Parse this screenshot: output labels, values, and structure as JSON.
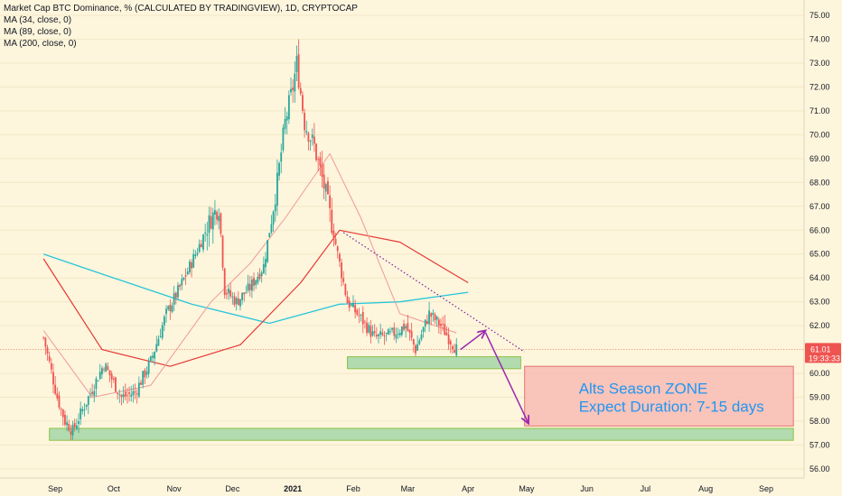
{
  "legend": {
    "title": "Market Cap BTC Dominance, % (CALCULATED BY TRADINGVIEW), 1D, CRYPTOCAP",
    "ma1": "MA (34, close, 0)",
    "ma2": "MA (89, close, 0)",
    "ma3": "MA (200, close, 0)"
  },
  "price_axis": {
    "labels": [
      "75.00",
      "74.00",
      "73.00",
      "72.00",
      "71.00",
      "70.00",
      "69.00",
      "68.00",
      "67.00",
      "66.00",
      "65.00",
      "64.00",
      "63.00",
      "62.00",
      "61.00",
      "60.00",
      "59.00",
      "58.00",
      "57.00",
      "56.00"
    ],
    "current_price": "61.01",
    "countdown": "19:33:33"
  },
  "time_axis": {
    "labels": [
      "Sep",
      "Oct",
      "Nov",
      "Dec",
      "2021",
      "Feb",
      "Mar",
      "Apr",
      "May",
      "Jun",
      "Jul",
      "Aug",
      "Sep"
    ]
  },
  "annotation": {
    "zone_title": "Alts Season ZONE",
    "zone_subtitle": "Expect Duration: 7-15 days"
  },
  "colors": {
    "background": "#fdf5dc",
    "up_candle": "#26a69a",
    "down_candle": "#ef5350",
    "ma34": "#ef9a9a",
    "ma89": "#e53935",
    "ma200": "#26c6da",
    "support_zone": "#a5d6a7",
    "alt_zone": "#f8bbb4",
    "arrow": "#9c27b0",
    "trendline": "#7b1fa2",
    "price_label_bg": "#ef5350"
  },
  "chart_data": {
    "type": "candlestick",
    "symbol": "BTC Dominance %",
    "ylim": [
      55.5,
      75.5
    ],
    "x_months": [
      "Sep",
      "Oct",
      "Nov",
      "Dec",
      "2021",
      "Feb",
      "Mar",
      "Apr",
      "May",
      "Jun",
      "Jul",
      "Aug",
      "Sep"
    ],
    "close_path": [
      [
        "2020-08-26",
        61.5
      ],
      [
        "2020-09-02",
        59.0
      ],
      [
        "2020-09-06",
        58.0
      ],
      [
        "2020-09-10",
        57.6
      ],
      [
        "2020-09-18",
        59.0
      ],
      [
        "2020-09-26",
        60.4
      ],
      [
        "2020-10-05",
        59.0
      ],
      [
        "2020-10-12",
        59.2
      ],
      [
        "2020-10-20",
        60.5
      ],
      [
        "2020-10-28",
        62.5
      ],
      [
        "2020-11-04",
        63.6
      ],
      [
        "2020-11-12",
        65.0
      ],
      [
        "2020-11-20",
        66.5
      ],
      [
        "2020-11-24",
        67.0
      ],
      [
        "2020-11-27",
        63.5
      ],
      [
        "2020-12-03",
        63.0
      ],
      [
        "2020-12-10",
        63.6
      ],
      [
        "2020-12-17",
        64.5
      ],
      [
        "2020-12-24",
        68.0
      ],
      [
        "2020-12-28",
        70.5
      ],
      [
        "2021-01-01",
        72.0
      ],
      [
        "2021-01-03",
        73.0
      ],
      [
        "2021-01-07",
        70.5
      ],
      [
        "2021-01-12",
        69.5
      ],
      [
        "2021-01-18",
        67.5
      ],
      [
        "2021-01-24",
        65.0
      ],
      [
        "2021-01-29",
        63.0
      ],
      [
        "2021-02-05",
        62.3
      ],
      [
        "2021-02-12",
        61.5
      ],
      [
        "2021-02-20",
        61.6
      ],
      [
        "2021-02-28",
        62.0
      ],
      [
        "2021-03-05",
        61.0
      ],
      [
        "2021-03-12",
        62.5
      ],
      [
        "2021-03-18",
        62.0
      ],
      [
        "2021-03-26",
        61.01
      ]
    ],
    "ma34": [
      [
        "2020-08-26",
        61.8
      ],
      [
        "2020-09-20",
        59.0
      ],
      [
        "2020-10-20",
        59.5
      ],
      [
        "2020-11-20",
        63.0
      ],
      [
        "2020-12-10",
        64.6
      ],
      [
        "2020-12-28",
        66.5
      ],
      [
        "2021-01-20",
        69.2
      ],
      [
        "2021-02-05",
        66.5
      ],
      [
        "2021-02-25",
        62.5
      ],
      [
        "2021-03-26",
        61.7
      ]
    ],
    "ma89": [
      [
        "2020-08-26",
        64.8
      ],
      [
        "2020-09-25",
        61.0
      ],
      [
        "2020-10-30",
        60.3
      ],
      [
        "2020-12-05",
        61.2
      ],
      [
        "2021-01-05",
        63.8
      ],
      [
        "2021-01-25",
        66.0
      ],
      [
        "2021-02-25",
        65.5
      ],
      [
        "2021-04-01",
        63.8
      ]
    ],
    "ma200": [
      [
        "2020-08-26",
        65.0
      ],
      [
        "2020-10-01",
        64.0
      ],
      [
        "2020-11-10",
        62.9
      ],
      [
        "2020-12-20",
        62.1
      ],
      [
        "2021-01-25",
        62.9
      ],
      [
        "2021-02-25",
        63.0
      ],
      [
        "2021-04-01",
        63.4
      ]
    ],
    "support_zone_1": {
      "y": [
        60.2,
        60.7
      ],
      "x": [
        "2021-01-29",
        "2021-04-28"
      ]
    },
    "support_zone_2": {
      "y": [
        57.2,
        57.7
      ],
      "x": [
        "2020-08-29",
        "2021-09-15"
      ]
    },
    "alt_zone": {
      "y": [
        57.8,
        60.3
      ],
      "x": [
        "2021-04-30",
        "2021-09-15"
      ]
    },
    "trendline": {
      "from": [
        "2021-01-27",
        65.9
      ],
      "to": [
        "2021-04-30",
        60.9
      ]
    },
    "arrow_up": {
      "from": [
        "2021-03-28",
        61.0
      ],
      "to": [
        "2021-04-10",
        61.8
      ]
    },
    "arrow_down": {
      "from": [
        "2021-04-10",
        61.7
      ],
      "to": [
        "2021-05-02",
        57.9
      ]
    }
  }
}
